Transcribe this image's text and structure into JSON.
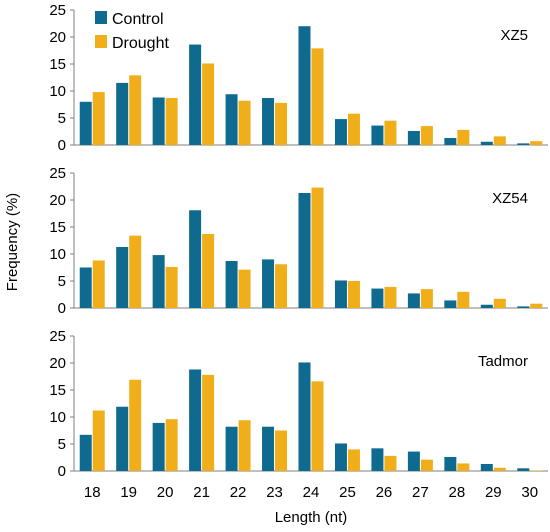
{
  "chart_data": {
    "type": "bar",
    "xlabel": "Length (nt)",
    "ylabel": "Frequency (%)",
    "categories": [
      "18",
      "19",
      "20",
      "21",
      "22",
      "23",
      "24",
      "25",
      "26",
      "27",
      "28",
      "29",
      "30"
    ],
    "ylim": [
      0,
      25
    ],
    "yticks": [
      "0",
      "5",
      "10",
      "15",
      "20",
      "25"
    ],
    "legend": {
      "placement": "top-left of first panel",
      "entries": [
        "Control",
        "Drought"
      ]
    },
    "colors": {
      "Control": "#0e6a8e",
      "Drought": "#f0ae1a"
    },
    "grid": false,
    "panels": [
      {
        "label": "XZ5",
        "series": [
          {
            "name": "Control",
            "values": [
              8.0,
              11.5,
              8.8,
              18.6,
              9.4,
              8.7,
              22.0,
              4.8,
              3.6,
              2.6,
              1.3,
              0.6,
              0.3
            ]
          },
          {
            "name": "Drought",
            "values": [
              9.8,
              12.9,
              8.7,
              15.1,
              8.2,
              7.8,
              17.9,
              5.8,
              4.5,
              3.5,
              2.8,
              1.6,
              0.7
            ]
          }
        ]
      },
      {
        "label": "XZ54",
        "series": [
          {
            "name": "Control",
            "values": [
              7.5,
              11.3,
              9.8,
              18.1,
              8.7,
              9.0,
              21.3,
              5.1,
              3.6,
              2.7,
              1.4,
              0.6,
              0.3
            ]
          },
          {
            "name": "Drought",
            "values": [
              8.8,
              13.4,
              7.6,
              13.7,
              7.1,
              8.1,
              22.3,
              5.0,
              3.9,
              3.5,
              3.0,
              1.7,
              0.8
            ]
          }
        ]
      },
      {
        "label": "Tadmor",
        "series": [
          {
            "name": "Control",
            "values": [
              6.7,
              11.9,
              8.9,
              18.8,
              8.2,
              8.2,
              20.1,
              5.1,
              4.2,
              3.6,
              2.6,
              1.3,
              0.5
            ]
          },
          {
            "name": "Drought",
            "values": [
              11.2,
              16.9,
              9.6,
              17.8,
              9.4,
              7.5,
              16.6,
              4.0,
              2.8,
              2.1,
              1.4,
              0.6,
              0.1
            ]
          }
        ]
      }
    ]
  }
}
